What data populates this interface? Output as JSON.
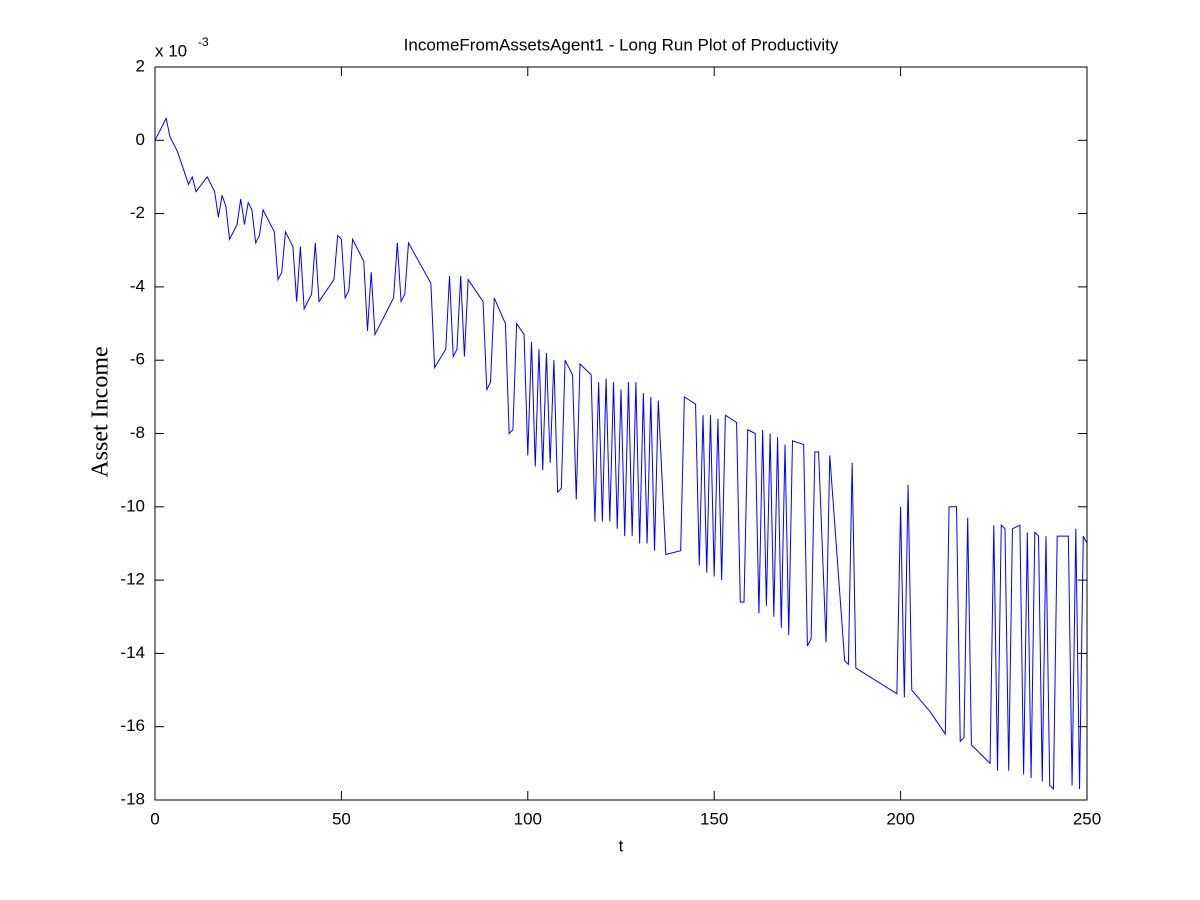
{
  "chart_data": {
    "type": "line",
    "title": "IncomeFromAssetsAgent1 - Long Run Plot of Productivity",
    "x_label": "t",
    "y_label": "Asset Income",
    "y_multiplier": "x 10",
    "y_exponent": "-3",
    "xlim": [
      0,
      250
    ],
    "xticks": [
      0,
      50,
      100,
      150,
      200,
      250
    ],
    "ylim": [
      -18,
      2
    ],
    "yticks": [
      -18,
      -16,
      -14,
      -12,
      -10,
      -8,
      -6,
      -4,
      -2,
      0,
      2
    ],
    "grid": false,
    "series": [
      {
        "color": "#0000ff",
        "x": [
          0,
          3,
          4,
          6,
          9,
          10,
          11,
          14,
          16,
          17,
          18,
          19,
          20,
          22,
          23,
          24,
          25,
          26,
          27,
          28,
          29,
          32,
          33,
          34,
          35,
          37,
          38,
          39,
          40,
          42,
          43,
          44,
          48,
          49,
          50,
          51,
          52,
          53,
          56,
          57,
          58,
          59,
          64,
          65,
          66,
          67,
          68,
          74,
          75,
          78,
          79,
          80,
          81,
          82,
          83,
          84,
          88,
          89,
          90,
          91,
          94,
          95,
          96,
          97,
          99,
          100,
          101,
          102,
          103,
          104,
          105,
          106,
          107,
          108,
          109,
          110,
          112,
          113,
          114,
          117,
          118,
          119,
          120,
          121,
          122,
          123,
          124,
          125,
          126,
          127,
          128,
          129,
          130,
          131,
          132,
          133,
          134,
          135,
          137,
          141,
          142,
          145,
          146,
          147,
          148,
          149,
          150,
          151,
          152,
          153,
          156,
          157,
          158,
          159,
          161,
          162,
          163,
          164,
          165,
          166,
          167,
          168,
          169,
          170,
          171,
          174,
          175,
          176,
          177,
          178,
          180,
          181,
          185,
          186,
          187,
          188,
          199,
          200,
          201,
          202,
          203,
          208,
          212,
          213,
          215,
          216,
          217,
          218,
          219,
          224,
          225,
          226,
          227,
          228,
          229,
          230,
          232,
          233,
          234,
          235,
          236,
          237,
          238,
          239,
          240,
          241,
          242,
          245,
          246,
          247,
          248,
          249,
          250
        ],
        "values": [
          0,
          0.6,
          0.1,
          -0.3,
          -1.2,
          -1.0,
          -1.4,
          -1.0,
          -1.4,
          -2.1,
          -1.5,
          -1.8,
          -2.7,
          -2.3,
          -1.6,
          -2.3,
          -1.7,
          -1.9,
          -2.8,
          -2.6,
          -1.9,
          -2.5,
          -3.8,
          -3.6,
          -2.5,
          -2.9,
          -4.4,
          -2.9,
          -4.6,
          -4.2,
          -2.8,
          -4.4,
          -3.8,
          -2.6,
          -2.7,
          -4.3,
          -4.1,
          -2.7,
          -3.3,
          -5.2,
          -3.6,
          -5.3,
          -4.3,
          -2.8,
          -4.4,
          -4.2,
          -2.8,
          -3.9,
          -6.2,
          -5.7,
          -3.7,
          -5.9,
          -5.7,
          -3.7,
          -5.9,
          -3.8,
          -4.4,
          -6.8,
          -6.6,
          -4.3,
          -5.0,
          -8.0,
          -7.9,
          -5.0,
          -5.3,
          -8.6,
          -5.5,
          -8.9,
          -5.7,
          -9.0,
          -5.8,
          -8.8,
          -6.0,
          -9.6,
          -9.5,
          -6.0,
          -6.4,
          -9.8,
          -6.1,
          -6.4,
          -10.4,
          -6.6,
          -10.4,
          -6.5,
          -10.4,
          -6.6,
          -10.6,
          -6.8,
          -10.8,
          -6.6,
          -10.8,
          -6.6,
          -11.0,
          -6.9,
          -11.0,
          -7.0,
          -11.2,
          -7.1,
          -11.3,
          -11.2,
          -7.0,
          -7.2,
          -11.6,
          -7.5,
          -11.8,
          -7.5,
          -11.9,
          -7.6,
          -12.0,
          -7.5,
          -7.7,
          -12.6,
          -12.6,
          -7.9,
          -8.0,
          -12.9,
          -7.9,
          -12.7,
          -8.0,
          -13.0,
          -8.1,
          -13.3,
          -8.3,
          -13.5,
          -8.2,
          -8.3,
          -13.8,
          -13.6,
          -8.5,
          -8.5,
          -13.7,
          -8.6,
          -14.2,
          -14.3,
          -8.8,
          -14.4,
          -15.1,
          -10.0,
          -15.2,
          -9.4,
          -15.0,
          -15.6,
          -16.2,
          -10.0,
          -10.0,
          -16.4,
          -16.3,
          -10.3,
          -16.5,
          -17.0,
          -10.5,
          -17.2,
          -10.5,
          -10.6,
          -17.2,
          -10.6,
          -10.5,
          -17.3,
          -10.7,
          -17.4,
          -10.7,
          -10.8,
          -17.5,
          -10.8,
          -17.6,
          -17.7,
          -10.8,
          -10.8,
          -17.6,
          -10.6,
          -17.7,
          -10.8,
          -11.0
        ]
      }
    ]
  }
}
